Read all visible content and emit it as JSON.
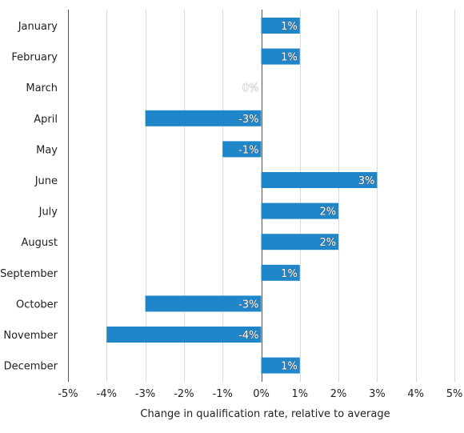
{
  "chart_data": {
    "type": "bar",
    "orientation": "horizontal",
    "categories": [
      "January",
      "February",
      "March",
      "April",
      "May",
      "June",
      "July",
      "August",
      "September",
      "October",
      "November",
      "December"
    ],
    "values": [
      1,
      1,
      0,
      -3,
      -1,
      3,
      2,
      2,
      1,
      -3,
      -4,
      1
    ],
    "value_labels": [
      "1%",
      "1%",
      "0%",
      "-3%",
      "-1%",
      "3%",
      "2%",
      "2%",
      "1%",
      "-3%",
      "-4%",
      "1%"
    ],
    "xlabel": "Change in qualification rate, relative to average",
    "ylabel": "",
    "title": "",
    "xlim": [
      -5,
      5
    ],
    "xticks": [
      -5,
      -4,
      -3,
      -2,
      -1,
      0,
      1,
      2,
      3,
      4,
      5
    ],
    "xtick_labels": [
      "-5%",
      "-4%",
      "-3%",
      "-2%",
      "-1%",
      "0%",
      "1%",
      "2%",
      "3%",
      "4%",
      "5%"
    ],
    "grid": "vertical",
    "legend": "none",
    "bar_color": "#1f87c9",
    "grid_color": "#d9d9d9",
    "axis_color": "#555555"
  }
}
